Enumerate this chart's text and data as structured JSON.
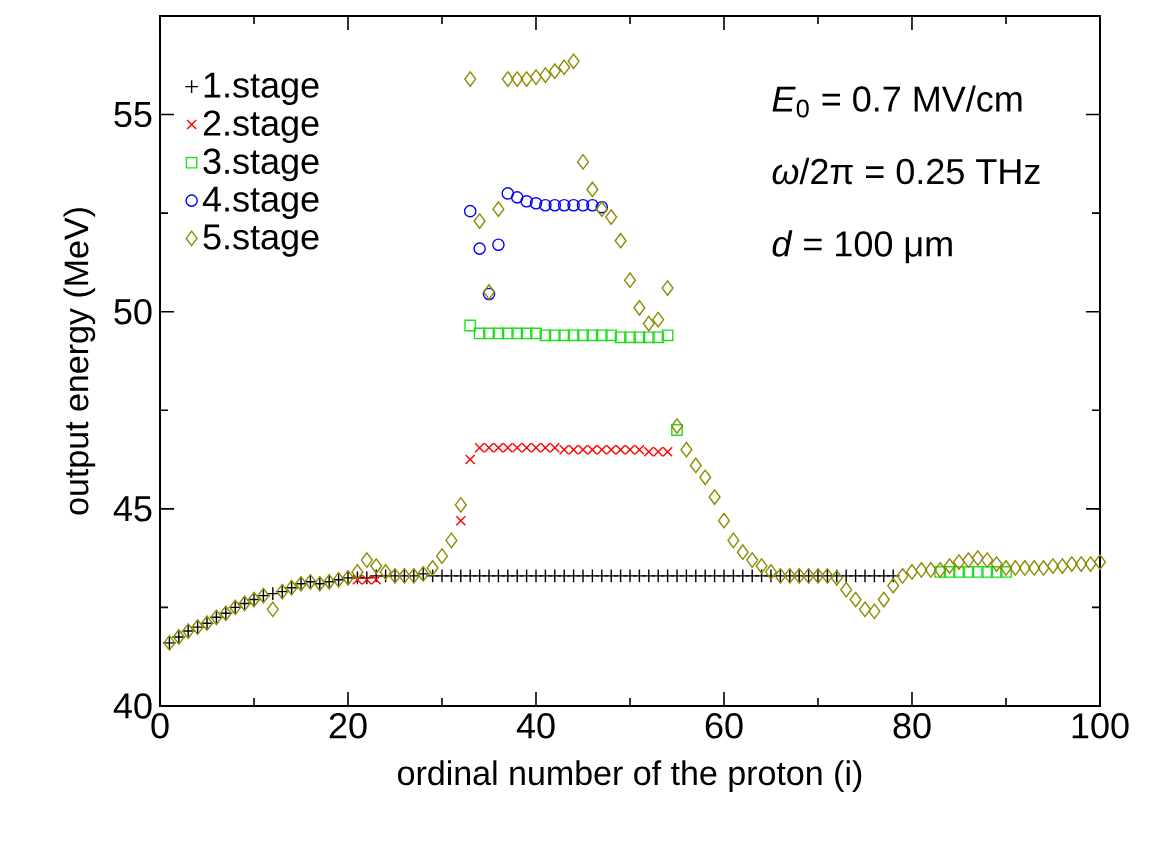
{
  "chart_data": {
    "type": "scatter",
    "xlabel": "ordinal number of the proton (i)",
    "ylabel": "output energy (MeV)",
    "xlim": [
      0,
      100
    ],
    "ylim": [
      40,
      57.5
    ],
    "xticks": [
      0,
      20,
      40,
      60,
      80,
      100
    ],
    "yticks": [
      40,
      45,
      50,
      55
    ],
    "grid": false,
    "legend": "top left",
    "annotations": [
      "*E*$_{0}$ = 0.7 MV/cm",
      "*ω*/2π = 0.25 THz",
      "*d* = 100 μm"
    ],
    "series": [
      {
        "name": "1.stage",
        "color": "#000000",
        "marker": "plus",
        "x": [
          1,
          2,
          3,
          4,
          5,
          6,
          7,
          8,
          9,
          10,
          11,
          12,
          13,
          14,
          15,
          16,
          17,
          18,
          19,
          20,
          21,
          22,
          23,
          24,
          25,
          26,
          27,
          28,
          29,
          30,
          31,
          32,
          33,
          34,
          35,
          36,
          37,
          38,
          39,
          40,
          41,
          42,
          43,
          44,
          45,
          46,
          47,
          48,
          49,
          50,
          51,
          52,
          53,
          54,
          55,
          56,
          57,
          58,
          59,
          60,
          61,
          62,
          63,
          64,
          65,
          66,
          67,
          68,
          69,
          70,
          71,
          72,
          73,
          74,
          75,
          76,
          77,
          78
        ],
        "values": [
          41.6,
          41.75,
          41.9,
          42.0,
          42.1,
          42.25,
          42.35,
          42.5,
          42.6,
          42.7,
          42.8,
          42.85,
          42.9,
          43.0,
          43.1,
          43.15,
          43.1,
          43.15,
          43.2,
          43.25,
          43.25,
          43.25,
          43.3,
          43.3,
          43.3,
          43.3,
          43.3,
          43.35,
          43.3,
          43.3,
          43.3,
          43.3,
          43.3,
          43.3,
          43.3,
          43.3,
          43.3,
          43.3,
          43.3,
          43.3,
          43.3,
          43.3,
          43.3,
          43.3,
          43.3,
          43.3,
          43.3,
          43.3,
          43.3,
          43.3,
          43.3,
          43.3,
          43.3,
          43.3,
          43.3,
          43.3,
          43.3,
          43.3,
          43.3,
          43.3,
          43.3,
          43.3,
          43.3,
          43.3,
          43.3,
          43.3,
          43.3,
          43.3,
          43.3,
          43.3,
          43.3,
          43.3,
          43.3,
          43.3,
          43.3,
          43.3,
          43.3,
          43.3
        ]
      },
      {
        "name": "2.stage",
        "color": "#ff0000",
        "marker": "cross",
        "x": [
          21,
          22,
          23,
          32,
          33,
          34,
          35,
          36,
          37,
          38,
          39,
          40,
          41,
          42,
          43,
          44,
          45,
          46,
          47,
          48,
          49,
          50,
          51,
          52,
          53,
          54
        ],
        "values": [
          43.2,
          43.2,
          43.2,
          44.7,
          46.25,
          46.55,
          46.55,
          46.55,
          46.55,
          46.55,
          46.55,
          46.55,
          46.55,
          46.55,
          46.5,
          46.5,
          46.5,
          46.5,
          46.5,
          46.5,
          46.5,
          46.5,
          46.5,
          46.45,
          46.45,
          46.45
        ]
      },
      {
        "name": "3.stage",
        "color": "#22dd22",
        "marker": "square",
        "x": [
          33,
          34,
          35,
          36,
          37,
          38,
          39,
          40,
          41,
          42,
          43,
          44,
          45,
          46,
          47,
          48,
          49,
          50,
          51,
          52,
          53,
          54,
          55,
          83,
          84,
          85,
          86,
          87,
          88,
          89,
          90
        ],
        "values": [
          49.65,
          49.45,
          49.45,
          49.45,
          49.45,
          49.45,
          49.45,
          49.45,
          49.4,
          49.4,
          49.4,
          49.4,
          49.4,
          49.4,
          49.4,
          49.4,
          49.35,
          49.35,
          49.35,
          49.35,
          49.35,
          49.4,
          47.0,
          43.4,
          43.4,
          43.4,
          43.4,
          43.4,
          43.4,
          43.4,
          43.4
        ]
      },
      {
        "name": "4.stage",
        "color": "#0000ff",
        "marker": "circle",
        "x": [
          33,
          34,
          35,
          36,
          37,
          38,
          39,
          40,
          41,
          42,
          43,
          44,
          45,
          46,
          47
        ],
        "values": [
          52.55,
          51.6,
          50.45,
          51.7,
          53.0,
          52.9,
          52.8,
          52.75,
          52.7,
          52.7,
          52.7,
          52.7,
          52.7,
          52.7,
          52.65
        ]
      },
      {
        "name": "5.stage",
        "color": "#8c8c00",
        "marker": "diamond",
        "x": [
          1,
          2,
          3,
          4,
          5,
          6,
          7,
          8,
          9,
          10,
          11,
          12,
          13,
          14,
          15,
          16,
          17,
          18,
          19,
          20,
          21,
          22,
          23,
          24,
          25,
          26,
          27,
          28,
          29,
          30,
          31,
          32,
          33,
          34,
          35,
          36,
          37,
          38,
          39,
          40,
          41,
          42,
          43,
          44,
          45,
          46,
          47,
          48,
          49,
          50,
          51,
          52,
          53,
          54,
          55,
          56,
          57,
          58,
          59,
          60,
          61,
          62,
          63,
          64,
          65,
          66,
          67,
          68,
          69,
          70,
          71,
          72,
          73,
          74,
          75,
          76,
          77,
          78,
          79,
          80,
          81,
          82,
          83,
          84,
          85,
          86,
          87,
          88,
          89,
          90,
          91,
          92,
          93,
          94,
          95,
          96,
          97,
          98,
          99,
          100
        ],
        "values": [
          41.6,
          41.75,
          41.9,
          42.0,
          42.1,
          42.25,
          42.35,
          42.5,
          42.6,
          42.7,
          42.8,
          42.45,
          42.9,
          43.0,
          43.1,
          43.15,
          43.1,
          43.15,
          43.2,
          43.25,
          43.4,
          43.7,
          43.55,
          43.4,
          43.3,
          43.3,
          43.3,
          43.35,
          43.5,
          43.8,
          44.2,
          45.1,
          55.9,
          52.3,
          50.5,
          52.6,
          55.9,
          55.9,
          55.9,
          55.95,
          56.0,
          56.1,
          56.2,
          56.35,
          53.8,
          53.1,
          52.6,
          52.4,
          51.8,
          50.8,
          50.1,
          49.7,
          49.8,
          50.6,
          47.1,
          46.5,
          46.1,
          45.8,
          45.3,
          44.7,
          44.2,
          43.9,
          43.7,
          43.55,
          43.4,
          43.3,
          43.3,
          43.3,
          43.3,
          43.3,
          43.3,
          43.25,
          42.95,
          42.7,
          42.45,
          42.4,
          42.7,
          43.05,
          43.3,
          43.4,
          43.45,
          43.45,
          43.45,
          43.55,
          43.65,
          43.7,
          43.75,
          43.7,
          43.6,
          43.5,
          43.5,
          43.5,
          43.5,
          43.5,
          43.55,
          43.55,
          43.6,
          43.6,
          43.6,
          43.65
        ]
      }
    ]
  }
}
